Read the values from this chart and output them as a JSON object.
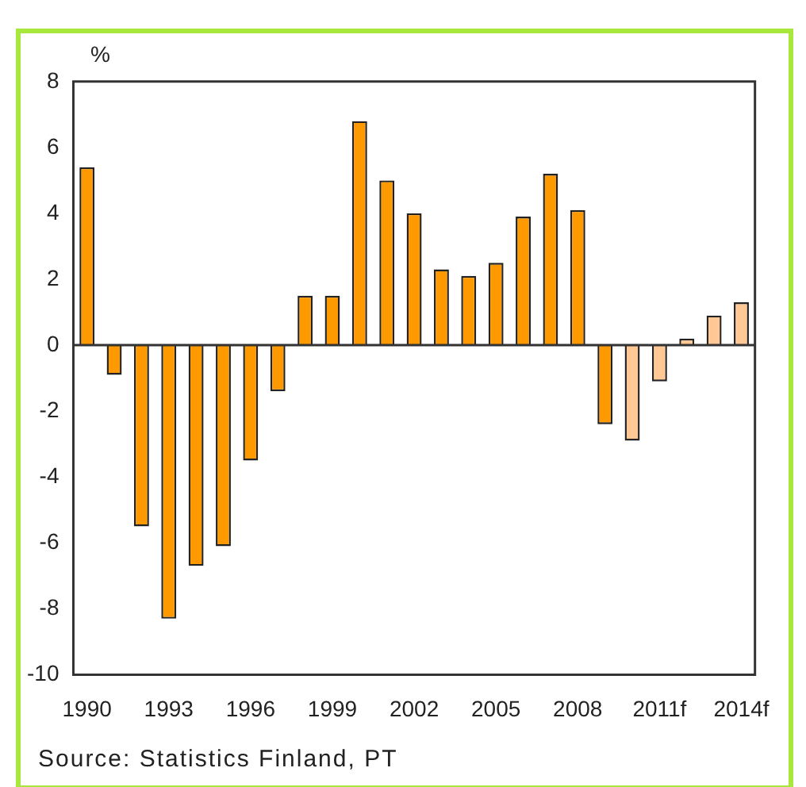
{
  "chart_data": {
    "type": "bar",
    "ylabel": "%",
    "categories": [
      "1990",
      null,
      null,
      "1993",
      null,
      null,
      "1996",
      null,
      null,
      "1999",
      null,
      null,
      "2002",
      null,
      null,
      "2005",
      null,
      null,
      "2008",
      null,
      null,
      "2011f",
      null,
      null,
      "2014f"
    ],
    "values": [
      5.4,
      -0.9,
      -5.5,
      -8.3,
      -6.7,
      -6.1,
      -3.5,
      -1.4,
      1.5,
      1.5,
      6.8,
      5.0,
      4.0,
      2.3,
      2.1,
      2.5,
      3.9,
      5.2,
      4.1,
      -2.4,
      -2.9,
      -1.1,
      0.2,
      0.9,
      1.3
    ],
    "colors": [
      "#ff9900",
      "#ff9900",
      "#ff9900",
      "#ff9900",
      "#ff9900",
      "#ff9900",
      "#ff9900",
      "#ff9900",
      "#ff9900",
      "#ff9900",
      "#ff9900",
      "#ff9900",
      "#ff9900",
      "#ff9900",
      "#ff9900",
      "#ff9900",
      "#ff9900",
      "#ff9900",
      "#ff9900",
      "#ff9900",
      "#ffc894",
      "#ffc894",
      "#ffc894",
      "#ffc894",
      "#ffc894"
    ],
    "ylim": [
      -10,
      8
    ],
    "yticks": [
      -10,
      -8,
      -6,
      -4,
      -2,
      0,
      2,
      4,
      6,
      8
    ],
    "legend": false,
    "annotations": [
      "Source: Statistics Finland, PT"
    ]
  }
}
